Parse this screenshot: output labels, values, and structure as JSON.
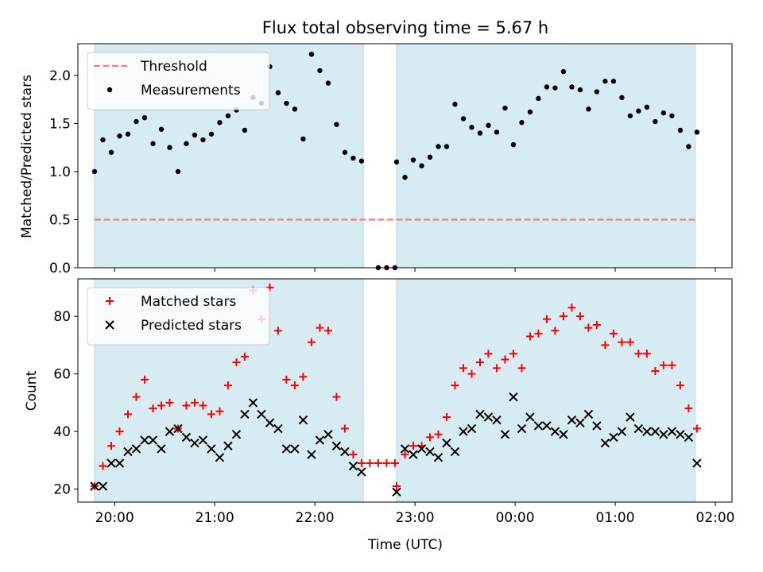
{
  "chart_data": [
    {
      "type": "scatter",
      "title": "Flux total observing time = 5.67 h",
      "xlabel": "",
      "ylabel": "Matched/Predicted stars",
      "ylim": [
        0,
        2.33
      ],
      "yticks": [
        0.0,
        0.5,
        1.0,
        1.5,
        2.0
      ],
      "ytick_labels": [
        "0.0",
        "0.5",
        "1.0",
        "1.5",
        "2.0"
      ],
      "xlim": [
        "19:38",
        "02:10"
      ],
      "x_unit": "time (UTC), observation night",
      "grid": false,
      "legend_position": "top-left",
      "observing_windows": [
        [
          "19:48",
          "22:29"
        ],
        [
          "22:49",
          "01:48"
        ]
      ],
      "threshold": {
        "name": "Threshold",
        "y": 0.5,
        "color": "#f08080"
      },
      "series": [
        {
          "name": "Measurements",
          "color": "#000000",
          "x": [
            "19:48",
            "19:53",
            "19:58",
            "20:03",
            "20:08",
            "20:13",
            "20:18",
            "20:23",
            "20:28",
            "20:33",
            "20:38",
            "20:43",
            "20:48",
            "20:53",
            "20:58",
            "21:03",
            "21:08",
            "21:13",
            "21:18",
            "21:23",
            "21:28",
            "21:33",
            "21:38",
            "21:43",
            "21:48",
            "21:53",
            "21:58",
            "22:03",
            "22:08",
            "22:13",
            "22:18",
            "22:23",
            "22:28",
            "22:38",
            "22:43",
            "22:48",
            "22:49",
            "22:54",
            "22:59",
            "23:04",
            "23:09",
            "23:14",
            "23:19",
            "23:24",
            "23:29",
            "23:34",
            "23:39",
            "23:44",
            "23:49",
            "23:54",
            "23:59",
            "00:04",
            "00:09",
            "00:14",
            "00:19",
            "00:24",
            "00:29",
            "00:34",
            "00:39",
            "00:44",
            "00:49",
            "00:54",
            "00:59",
            "01:04",
            "01:09",
            "01:14",
            "01:19",
            "01:24",
            "01:29",
            "01:34",
            "01:39",
            "01:44",
            "01:49"
          ],
          "values": [
            1.0,
            1.33,
            1.2,
            1.37,
            1.39,
            1.52,
            1.56,
            1.29,
            1.44,
            1.25,
            1.0,
            1.29,
            1.38,
            1.33,
            1.39,
            1.51,
            1.58,
            1.64,
            1.43,
            1.77,
            1.71,
            2.09,
            1.82,
            1.71,
            1.65,
            1.34,
            2.22,
            2.05,
            1.92,
            1.49,
            1.2,
            1.14,
            1.11,
            0.0,
            0.0,
            0.0,
            1.1,
            0.94,
            1.12,
            1.06,
            1.15,
            1.26,
            1.26,
            1.7,
            1.55,
            1.46,
            1.4,
            1.48,
            1.41,
            1.66,
            1.28,
            1.51,
            1.62,
            1.76,
            1.88,
            1.87,
            2.04,
            1.88,
            1.85,
            1.65,
            1.83,
            1.94,
            1.94,
            1.77,
            1.58,
            1.63,
            1.67,
            1.52,
            1.61,
            1.58,
            1.43,
            1.26,
            1.41
          ]
        }
      ]
    },
    {
      "type": "scatter",
      "title": "",
      "xlabel": "Time (UTC)",
      "ylabel": "Count",
      "ylim": [
        15.5,
        93
      ],
      "yticks": [
        20,
        40,
        60,
        80
      ],
      "ytick_labels": [
        "20",
        "40",
        "60",
        "80"
      ],
      "xlim": [
        "19:38",
        "02:10"
      ],
      "xticks": [
        "20:00",
        "21:00",
        "22:00",
        "23:00",
        "00:00",
        "01:00",
        "02:00"
      ],
      "xtick_labels": [
        "20:00",
        "21:00",
        "22:00",
        "23:00",
        "00:00",
        "01:00",
        "02:00"
      ],
      "grid": false,
      "legend_position": "top-left",
      "observing_windows": [
        [
          "19:48",
          "22:29"
        ],
        [
          "22:49",
          "01:48"
        ]
      ],
      "series": [
        {
          "name": "Matched stars",
          "marker": "plus",
          "color": "#ff0000",
          "x": [
            "19:48",
            "19:53",
            "19:58",
            "20:03",
            "20:08",
            "20:13",
            "20:18",
            "20:23",
            "20:28",
            "20:33",
            "20:38",
            "20:43",
            "20:48",
            "20:53",
            "20:58",
            "21:03",
            "21:08",
            "21:13",
            "21:18",
            "21:23",
            "21:28",
            "21:33",
            "21:38",
            "21:43",
            "21:48",
            "21:53",
            "21:58",
            "22:03",
            "22:08",
            "22:13",
            "22:18",
            "22:23",
            "22:28",
            "22:33",
            "22:38",
            "22:43",
            "22:48",
            "22:49",
            "22:54",
            "22:59",
            "23:04",
            "23:09",
            "23:14",
            "23:19",
            "23:24",
            "23:29",
            "23:34",
            "23:39",
            "23:44",
            "23:49",
            "23:54",
            "23:59",
            "00:04",
            "00:09",
            "00:14",
            "00:19",
            "00:24",
            "00:29",
            "00:34",
            "00:39",
            "00:44",
            "00:49",
            "00:54",
            "00:59",
            "01:04",
            "01:09",
            "01:14",
            "01:19",
            "01:24",
            "01:29",
            "01:34",
            "01:39",
            "01:44",
            "01:49"
          ],
          "values": [
            21,
            28,
            35,
            40,
            46,
            52,
            58,
            48,
            49,
            50,
            41,
            49,
            50,
            49,
            46,
            47,
            56,
            64,
            66,
            89,
            79,
            90,
            75,
            58,
            56,
            59,
            71,
            76,
            75,
            52,
            41,
            32,
            29,
            29,
            29,
            29,
            29,
            21,
            32,
            35,
            35,
            38,
            39,
            45,
            56,
            62,
            60,
            64,
            67,
            62,
            65,
            67,
            62,
            73,
            74,
            79,
            75,
            80,
            83,
            80,
            76,
            77,
            70,
            74,
            71,
            71,
            67,
            67,
            61,
            63,
            63,
            56,
            48,
            41
          ]
        },
        {
          "name": "Predicted stars",
          "marker": "x",
          "color": "#000000",
          "x": [
            "19:48",
            "19:53",
            "19:58",
            "20:03",
            "20:08",
            "20:13",
            "20:18",
            "20:23",
            "20:28",
            "20:33",
            "20:38",
            "20:43",
            "20:48",
            "20:53",
            "20:58",
            "21:03",
            "21:08",
            "21:13",
            "21:18",
            "21:23",
            "21:28",
            "21:33",
            "21:38",
            "21:43",
            "21:48",
            "21:53",
            "21:58",
            "22:03",
            "22:08",
            "22:13",
            "22:18",
            "22:23",
            "22:28",
            "22:49",
            "22:54",
            "22:59",
            "23:04",
            "23:09",
            "23:14",
            "23:19",
            "23:24",
            "23:29",
            "23:34",
            "23:39",
            "23:44",
            "23:49",
            "23:54",
            "23:59",
            "00:04",
            "00:09",
            "00:14",
            "00:19",
            "00:24",
            "00:29",
            "00:34",
            "00:39",
            "00:44",
            "00:49",
            "00:54",
            "00:59",
            "01:04",
            "01:09",
            "01:14",
            "01:19",
            "01:24",
            "01:29",
            "01:34",
            "01:39",
            "01:44",
            "01:49"
          ],
          "values": [
            21,
            21,
            29,
            29,
            33,
            34,
            37,
            37,
            34,
            40,
            41,
            38,
            36,
            37,
            34,
            31,
            35,
            39,
            46,
            50,
            46,
            43,
            41,
            34,
            34,
            44,
            32,
            37,
            39,
            35,
            33,
            28,
            26,
            19,
            34,
            32,
            34,
            33,
            31,
            36,
            33,
            40,
            41,
            46,
            45,
            44,
            39,
            52,
            41,
            45,
            42,
            42,
            40,
            39,
            44,
            43,
            46,
            42,
            36,
            38,
            40,
            45,
            41,
            40,
            40,
            39,
            40,
            39,
            38,
            29
          ]
        }
      ]
    }
  ]
}
